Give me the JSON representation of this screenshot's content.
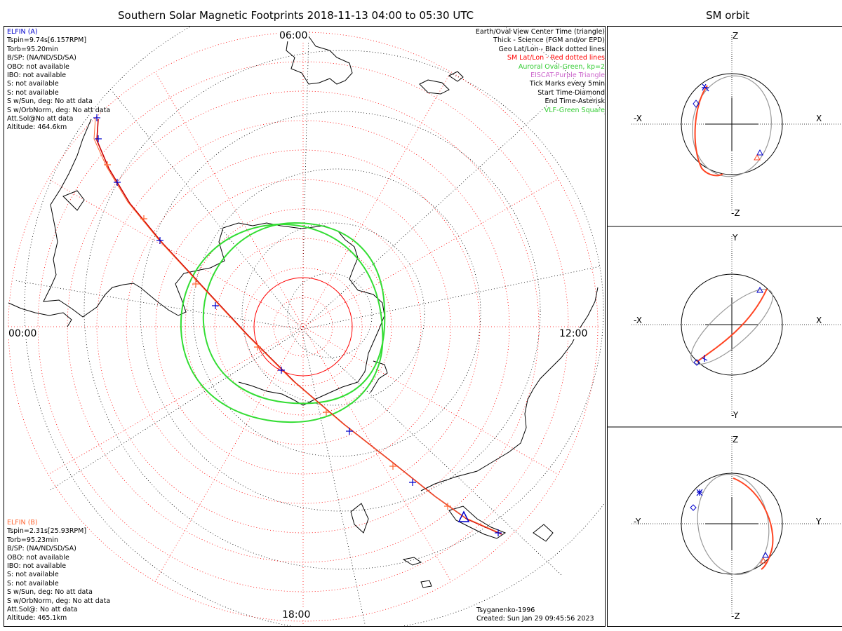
{
  "title": "Southern Solar Magnetic Footprints 2018-11-13 04:00 to 05:30 UTC",
  "sm_orbit_title": "SM orbit",
  "hour_labels": {
    "top": "06:00",
    "left": "00:00",
    "right": "12:00",
    "bottom": "18:00"
  },
  "elfin_a": {
    "name": "ELFIN (A)",
    "color": "#0000cc",
    "lines": [
      "Tspin=9.74s[6.157RPM]",
      "Torb=95.20min",
      "B/SP: (NA/ND/SD/SA)",
      "OBO: not available",
      "IBO: not available",
      "S: not available",
      "S: not available",
      "S w/Sun, deg: No att data",
      "S w/OrbNorm, deg: No att data",
      "Att.Sol@No att data",
      "Altitude: 464.6km"
    ]
  },
  "elfin_b": {
    "name": "ELFIN (B)",
    "color": "#ff6633",
    "lines": [
      "Tspin=2.31s[25.93RPM]",
      "Torb=95.23min",
      "B/SP: (NA/ND/SD/SA)",
      "OBO: not available",
      "IBO: not available",
      "S: not available",
      "S: not available",
      "S w/Sun, deg: No att data",
      "S w/OrbNorm, deg: No att data",
      "Att.Sol@: No att data",
      "Altitude: 465.1km"
    ]
  },
  "legend": [
    {
      "text": "Earth/Oval View Center Time (triangle)",
      "color": "#000000"
    },
    {
      "text": "Thick - Science (FGM and/or EPD)",
      "color": "#000000"
    },
    {
      "text": "Geo Lat/Lon - Black dotted lines",
      "color": "#000000"
    },
    {
      "text": "SM Lat/Lon - Red dotted lines",
      "color": "#ff0000"
    },
    {
      "text": "Auroral Oval-Green, kp=2",
      "color": "#33cc33"
    },
    {
      "text": "EISCAT-Purple Triangle",
      "color": "#cc66cc"
    },
    {
      "text": "Tick Marks every 5min",
      "color": "#000000"
    },
    {
      "text": "Start Time-Diamond",
      "color": "#000000"
    },
    {
      "text": "End Time-Asterisk",
      "color": "#000000"
    },
    {
      "text": "VLF-Green Square",
      "color": "#33cc33"
    }
  ],
  "footer": {
    "model": "Tsyganenko-1996",
    "created": "Created: Sun Jan 29 09:45:56 2023"
  },
  "orbit_panels": [
    {
      "top": "Z",
      "bottom": "-Z",
      "left": "-X",
      "right": "X"
    },
    {
      "top": "Y",
      "bottom": "-Y",
      "left": "-X",
      "right": "X"
    },
    {
      "top": "Z",
      "bottom": "-Z",
      "left": "-Y",
      "right": "Y"
    }
  ],
  "colors": {
    "elfin_a": "#0000cc",
    "elfin_b": "#ff6633",
    "sm_grid": "#ff0000",
    "oval": "#33cc33",
    "orbit_gray": "#999999"
  }
}
